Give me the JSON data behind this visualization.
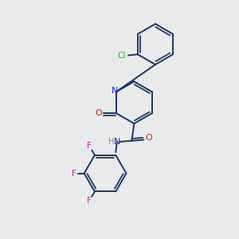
{
  "bg_color": "#e8eaec",
  "bond_color": "#1a3560",
  "bond_width": 1.4,
  "cl_color": "#22aa22",
  "n_color": "#2222cc",
  "o_color": "#cc2200",
  "f_color": "#cc22aa",
  "h_color": "#888888",
  "figsize": [
    3.0,
    3.0
  ],
  "dpi": 100,
  "xlim": [
    0,
    10
  ],
  "ylim": [
    0,
    10
  ]
}
